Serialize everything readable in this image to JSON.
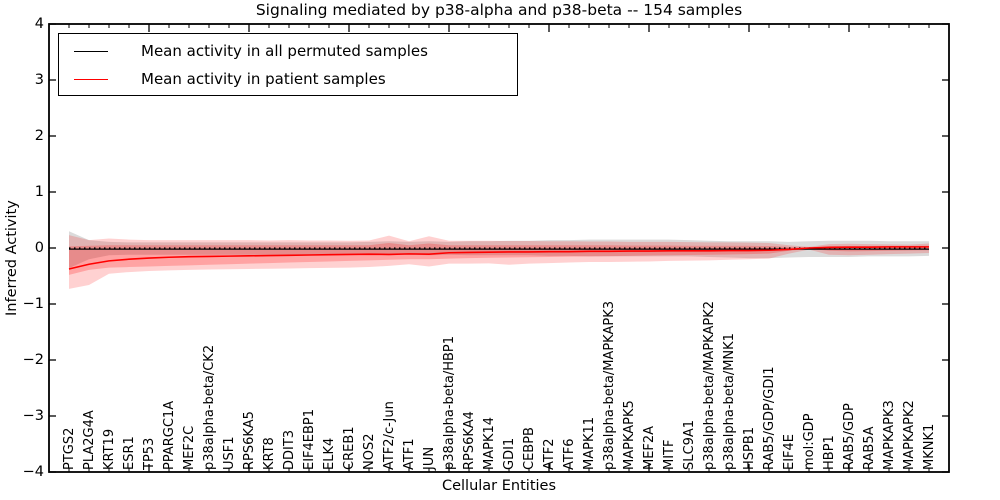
{
  "title": "Signaling mediated by p38-alpha and p38-beta -- 154 samples",
  "axes": {
    "xlabel": "Cellular Entities",
    "ylabel": "Inferred Activity",
    "ytick_labels": [
      "4",
      "3",
      "2",
      "1",
      "0",
      "−1",
      "−2",
      "−3",
      "−4"
    ],
    "ytick_values": [
      4,
      3,
      2,
      1,
      0,
      -1,
      -2,
      -3,
      -4
    ]
  },
  "legend": {
    "items": [
      {
        "label": "Mean activity in all permuted samples",
        "color": "#000000"
      },
      {
        "label": "Mean activity in patient samples",
        "color": "#ff0000"
      }
    ]
  },
  "colors": {
    "patient_line": "#ff0000",
    "permuted_line": "#000000",
    "patient_band": "#ff0000",
    "permuted_band": "#999999",
    "frame": "#000000"
  },
  "chart_data": {
    "type": "line",
    "title": "Signaling mediated by p38-alpha and p38-beta -- 154 samples",
    "xlabel": "Cellular Entities",
    "ylabel": "Inferred Activity",
    "ylim": [
      -4,
      4
    ],
    "xlim": [
      0,
      45
    ],
    "grid": false,
    "legend_position": "upper left",
    "zero_line": {
      "y": 0,
      "style": "dotted"
    },
    "categories": [
      "PTGS2",
      "PLA2G4A",
      "KRT19",
      "ESR1",
      "TP53",
      "PPARGC1A",
      "MEF2C",
      "p38alpha-beta/CK2",
      "USF1",
      "RPS6KA5",
      "KRT8",
      "DDIT3",
      "EIF4EBP1",
      "ELK4",
      "CREB1",
      "NOS2",
      "ATF2/c-Jun",
      "ATF1",
      "JUN",
      "p38alpha-beta/HBP1",
      "RPS6KA4",
      "MAPK14",
      "GDI1",
      "CEBPB",
      "ATF2",
      "ATF6",
      "MAPK11",
      "p38alpha-beta/MAPKAPK3",
      "MAPKAPK5",
      "MEF2A",
      "MITF",
      "SLC9A1",
      "p38alpha-beta/MAPKAPK2",
      "p38alpha-beta/MNK1",
      "HSPB1",
      "RAB5/GDP/GDI1",
      "EIF4E",
      "mol:GDP",
      "HBP1",
      "RAB5/GDP",
      "RAB5A",
      "MAPKAPK3",
      "MAPKAPK2",
      "MKNK1"
    ],
    "series": [
      {
        "name": "Mean activity in all permuted samples",
        "color": "#000000",
        "values": [
          -0.02,
          -0.02,
          -0.02,
          -0.02,
          -0.02,
          -0.02,
          -0.02,
          -0.02,
          -0.02,
          -0.02,
          -0.02,
          -0.02,
          -0.02,
          -0.02,
          -0.02,
          -0.02,
          -0.02,
          -0.02,
          -0.02,
          -0.02,
          -0.02,
          -0.02,
          -0.02,
          -0.02,
          -0.02,
          -0.02,
          -0.02,
          -0.02,
          -0.02,
          -0.02,
          -0.02,
          -0.02,
          -0.02,
          -0.02,
          -0.02,
          -0.02,
          -0.02,
          -0.02,
          -0.02,
          -0.02,
          -0.02,
          -0.02,
          -0.02,
          -0.02
        ]
      },
      {
        "name": "Mean activity in patient samples",
        "color": "#ff0000",
        "values": [
          -0.375,
          -0.29,
          -0.23,
          -0.2,
          -0.18,
          -0.165,
          -0.155,
          -0.15,
          -0.145,
          -0.14,
          -0.135,
          -0.13,
          -0.125,
          -0.12,
          -0.115,
          -0.11,
          -0.115,
          -0.105,
          -0.11,
          -0.085,
          -0.08,
          -0.075,
          -0.07,
          -0.07,
          -0.065,
          -0.065,
          -0.06,
          -0.06,
          -0.055,
          -0.055,
          -0.05,
          -0.05,
          -0.05,
          -0.045,
          -0.045,
          -0.04,
          -0.025,
          0.0,
          0.01,
          0.015,
          0.015,
          0.02,
          0.02,
          0.02
        ]
      }
    ],
    "bands": [
      {
        "name": "permuted-samples-spread",
        "color": "#999999",
        "opacity": 0.35,
        "upper": [
          0.3,
          0.14,
          0.11,
          0.1,
          0.1,
          0.1,
          0.1,
          0.1,
          0.1,
          0.1,
          0.1,
          0.1,
          0.1,
          0.1,
          0.1,
          0.11,
          0.12,
          0.11,
          0.12,
          0.11,
          0.12,
          0.12,
          0.13,
          0.13,
          0.14,
          0.14,
          0.15,
          0.15,
          0.15,
          0.15,
          0.15,
          0.14,
          0.13,
          0.12,
          0.12,
          0.12,
          0.11,
          0.12,
          0.13,
          0.13,
          0.13,
          0.12,
          0.12,
          0.12
        ],
        "lower": [
          -0.36,
          -0.2,
          -0.13,
          -0.12,
          -0.12,
          -0.12,
          -0.12,
          -0.12,
          -0.12,
          -0.12,
          -0.12,
          -0.12,
          -0.12,
          -0.12,
          -0.12,
          -0.12,
          -0.13,
          -0.12,
          -0.13,
          -0.12,
          -0.13,
          -0.13,
          -0.13,
          -0.13,
          -0.14,
          -0.14,
          -0.15,
          -0.15,
          -0.15,
          -0.15,
          -0.15,
          -0.15,
          -0.16,
          -0.17,
          -0.18,
          -0.18,
          -0.17,
          -0.16,
          -0.16,
          -0.16,
          -0.15,
          -0.15,
          -0.15,
          -0.14
        ]
      },
      {
        "name": "patient-samples-spread-outer",
        "color": "#ff0000",
        "opacity": 0.18,
        "upper": [
          0.23,
          0.14,
          0.17,
          0.15,
          0.14,
          0.14,
          0.14,
          0.14,
          0.14,
          0.14,
          0.135,
          0.14,
          0.135,
          0.135,
          0.13,
          0.135,
          0.22,
          0.12,
          0.21,
          0.13,
          0.13,
          0.13,
          0.125,
          0.125,
          0.12,
          0.12,
          0.115,
          0.115,
          0.11,
          0.11,
          0.11,
          0.105,
          0.1,
          0.1,
          0.095,
          0.09,
          0.05,
          0.02,
          0.07,
          0.075,
          0.07,
          0.065,
          0.06,
          0.08
        ],
        "lower": [
          -0.73,
          -0.66,
          -0.46,
          -0.43,
          -0.41,
          -0.4,
          -0.39,
          -0.385,
          -0.38,
          -0.375,
          -0.37,
          -0.365,
          -0.36,
          -0.355,
          -0.35,
          -0.34,
          -0.32,
          -0.29,
          -0.33,
          -0.28,
          -0.28,
          -0.275,
          -0.3,
          -0.28,
          -0.27,
          -0.26,
          -0.25,
          -0.25,
          -0.245,
          -0.24,
          -0.23,
          -0.225,
          -0.22,
          -0.21,
          -0.2,
          -0.19,
          -0.1,
          -0.03,
          -0.12,
          -0.13,
          -0.12,
          -0.11,
          -0.1,
          -0.09
        ]
      },
      {
        "name": "patient-samples-spread-inner",
        "color": "#ff0000",
        "opacity": 0.22,
        "upper": [
          0.03,
          0.04,
          0.05,
          0.05,
          0.05,
          0.05,
          0.05,
          0.05,
          0.05,
          0.05,
          0.05,
          0.05,
          0.05,
          0.05,
          0.05,
          0.05,
          0.09,
          0.05,
          0.08,
          0.05,
          0.05,
          0.05,
          0.05,
          0.05,
          0.05,
          0.05,
          0.05,
          0.05,
          0.045,
          0.045,
          0.045,
          0.04,
          0.04,
          0.04,
          0.04,
          0.035,
          0.02,
          0.01,
          0.035,
          0.035,
          0.035,
          0.035,
          0.035,
          0.04
        ],
        "lower": [
          -0.48,
          -0.39,
          -0.35,
          -0.34,
          -0.33,
          -0.32,
          -0.31,
          -0.3,
          -0.29,
          -0.28,
          -0.27,
          -0.26,
          -0.25,
          -0.24,
          -0.23,
          -0.22,
          -0.21,
          -0.2,
          -0.2,
          -0.19,
          -0.18,
          -0.175,
          -0.17,
          -0.165,
          -0.16,
          -0.155,
          -0.15,
          -0.145,
          -0.14,
          -0.135,
          -0.13,
          -0.125,
          -0.12,
          -0.115,
          -0.11,
          -0.1,
          -0.05,
          -0.015,
          -0.05,
          -0.06,
          -0.055,
          -0.05,
          -0.045,
          -0.04
        ]
      }
    ]
  }
}
